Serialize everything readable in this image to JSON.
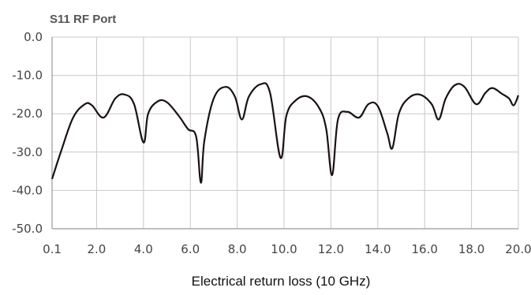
{
  "chart_data": {
    "type": "line",
    "title": "S11 RF Port",
    "xlabel": "Electrical return loss (10 GHz)",
    "ylabel": "",
    "xlim": [
      0.1,
      20.0
    ],
    "ylim": [
      -50.0,
      0.0
    ],
    "grid": true,
    "x_ticks": [
      "0.1",
      "2.0",
      "4.0",
      "6.0",
      "8.0",
      "10.0",
      "12.0",
      "14.0",
      "16.0",
      "18.0",
      "20.0"
    ],
    "y_ticks": [
      "0.0",
      "-10.0",
      "-20.0",
      "-30.0",
      "-40.0",
      "-50.0"
    ],
    "x_tick_values": [
      0.1,
      2.0,
      4.0,
      6.0,
      8.0,
      10.0,
      12.0,
      14.0,
      16.0,
      18.0,
      20.0
    ],
    "y_tick_values": [
      0.0,
      -10.0,
      -20.0,
      -30.0,
      -40.0,
      -50.0
    ],
    "series": [
      {
        "color": "#1a1212",
        "x": [
          0.1,
          0.5,
          1.0,
          1.5,
          1.8,
          2.3,
          2.8,
          3.2,
          3.6,
          4.0,
          4.2,
          4.6,
          5.0,
          5.5,
          5.9,
          6.25,
          6.45,
          6.6,
          7.0,
          7.5,
          7.9,
          8.2,
          8.5,
          9.0,
          9.4,
          9.85,
          10.1,
          10.5,
          11.0,
          11.5,
          11.8,
          12.05,
          12.3,
          12.7,
          13.2,
          13.6,
          14.0,
          14.4,
          14.62,
          14.9,
          15.3,
          15.8,
          16.3,
          16.6,
          16.9,
          17.3,
          17.7,
          18.2,
          18.6,
          18.9,
          19.3,
          19.6,
          19.8,
          20.0
        ],
        "y": [
          -37.0,
          -29.5,
          -21.0,
          -17.5,
          -17.8,
          -21.0,
          -16.0,
          -15.0,
          -17.5,
          -27.5,
          -20.0,
          -16.8,
          -17.0,
          -20.5,
          -24.0,
          -26.0,
          -38.0,
          -27.0,
          -16.0,
          -13.0,
          -15.5,
          -21.5,
          -15.5,
          -12.3,
          -14.5,
          -31.5,
          -20.5,
          -16.5,
          -15.5,
          -18.5,
          -24.0,
          -36.0,
          -21.5,
          -19.5,
          -21.0,
          -17.5,
          -18.0,
          -25.0,
          -29.0,
          -20.0,
          -16.0,
          -15.0,
          -17.5,
          -21.5,
          -16.0,
          -12.5,
          -13.0,
          -17.5,
          -14.5,
          -13.3,
          -14.8,
          -16.0,
          -17.8,
          -15.2
        ]
      }
    ]
  }
}
